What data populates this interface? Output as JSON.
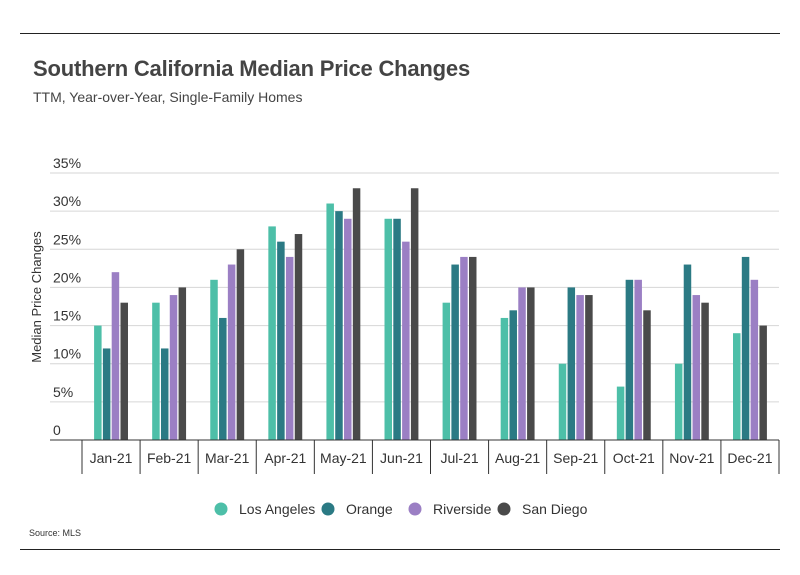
{
  "header": {
    "title": "Southern California Median Price Changes",
    "subtitle": "TTM, Year-over-Year, Single-Family Homes"
  },
  "footer": {
    "source": "Source:  MLS"
  },
  "chart_data": {
    "type": "bar",
    "title": "Southern California Median Price Changes",
    "subtitle": "TTM, Year-over-Year, Single-Family Homes",
    "xlabel": "",
    "ylabel": "Median Price Changes",
    "ylim": [
      0,
      35
    ],
    "yticks": [
      0,
      5,
      10,
      15,
      20,
      25,
      30,
      35
    ],
    "ytick_labels": [
      "0",
      "5%",
      "10%",
      "15%",
      "20%",
      "25%",
      "30%",
      "35%"
    ],
    "grid": true,
    "legend_position": "bottom",
    "categories": [
      "Jan-21",
      "Feb-21",
      "Mar-21",
      "Apr-21",
      "May-21",
      "Jun-21",
      "Jul-21",
      "Aug-21",
      "Sep-21",
      "Oct-21",
      "Nov-21",
      "Dec-21"
    ],
    "series": [
      {
        "name": "Los Angeles",
        "color": "#4dbfa8",
        "values": [
          15,
          18,
          21,
          28,
          31,
          29,
          18,
          16,
          10,
          7,
          10,
          14
        ]
      },
      {
        "name": "Orange",
        "color": "#2b7a84",
        "values": [
          12,
          12,
          16,
          26,
          30,
          29,
          23,
          17,
          20,
          21,
          23,
          24
        ]
      },
      {
        "name": "Riverside",
        "color": "#9b7fc4",
        "values": [
          22,
          19,
          23,
          24,
          29,
          26,
          24,
          20,
          19,
          21,
          19,
          21
        ]
      },
      {
        "name": "San Diego",
        "color": "#4a4a4a",
        "values": [
          18,
          20,
          25,
          27,
          33,
          33,
          24,
          20,
          19,
          17,
          18,
          15
        ]
      }
    ]
  }
}
